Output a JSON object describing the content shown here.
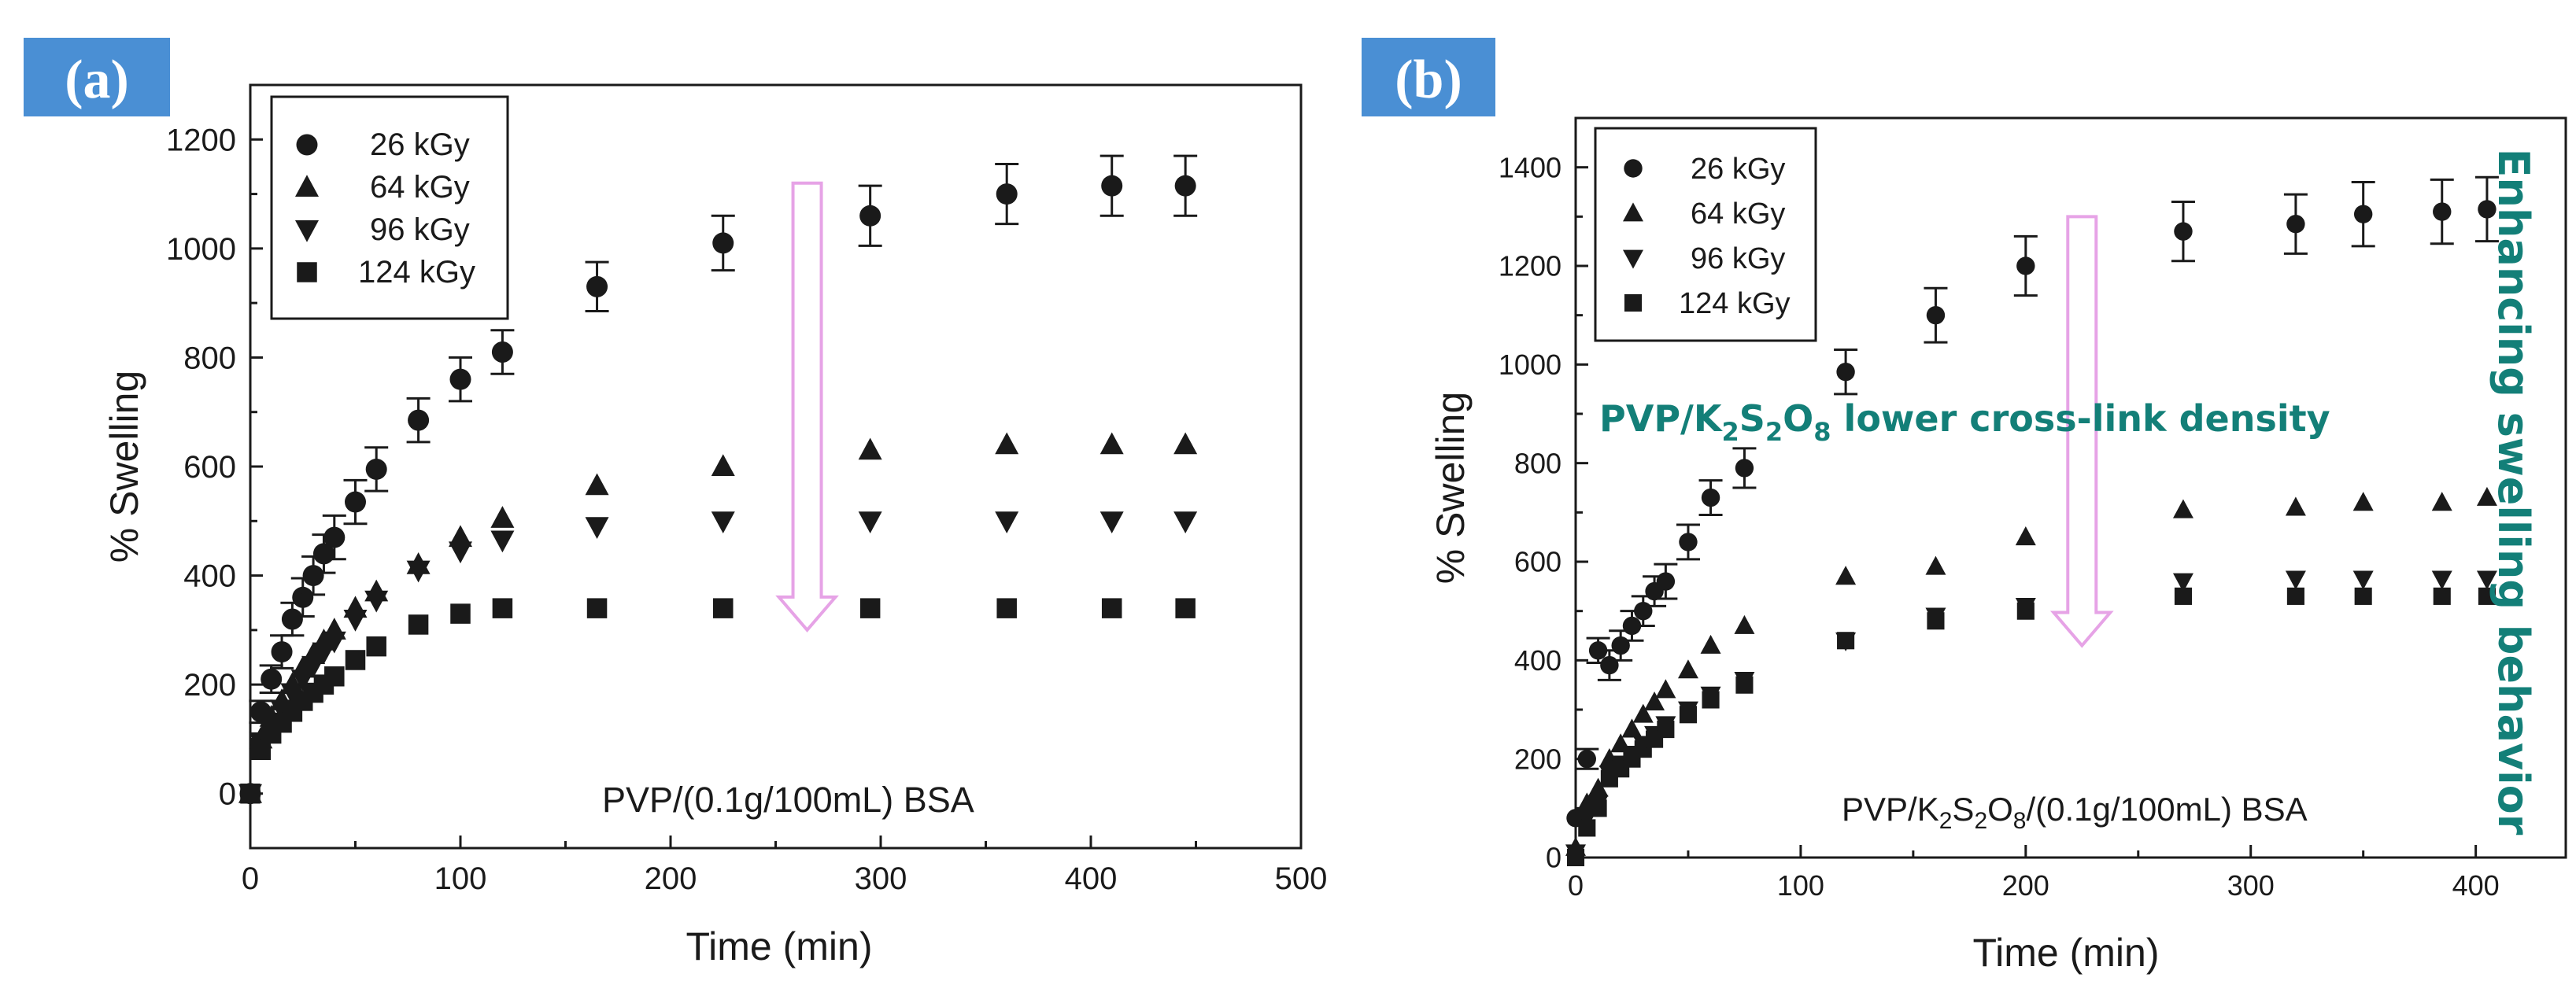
{
  "colors": {
    "marker": "#1a1a1a",
    "badge_bg": "#4a8fd4",
    "badge_text": "#ffffff",
    "arrow": "#e6a3e6",
    "annotation": "#137f78"
  },
  "chart_data": [
    {
      "type": "scatter",
      "panel_label": "(a)",
      "xlabel": "Time (min)",
      "ylabel": "% Swelling",
      "xlim": [
        0,
        500
      ],
      "ylim": [
        -100,
        1300
      ],
      "xticks": [
        "0",
        "100",
        "200",
        "300",
        "400",
        "500"
      ],
      "yticks": [
        "0",
        "200",
        "400",
        "600",
        "800",
        "1000",
        "1200"
      ],
      "legend_position": "top-left",
      "legend": [
        "26 kGy",
        "64 kGy",
        "96 kGy",
        "124 kGy"
      ],
      "annotation_text": "PVP/(0.1g/100mL) BSA",
      "arrow": {
        "x": 265,
        "y_from": 1120,
        "y_to": 300
      },
      "series": [
        {
          "name": "26 kGy",
          "marker": "circle",
          "x": [
            0,
            5,
            10,
            15,
            20,
            25,
            30,
            35,
            40,
            50,
            60,
            80,
            100,
            120,
            165,
            225,
            295,
            360,
            410,
            445
          ],
          "y": [
            0,
            150,
            210,
            260,
            320,
            360,
            400,
            440,
            470,
            535,
            595,
            685,
            760,
            810,
            930,
            1010,
            1060,
            1100,
            1115,
            1115
          ],
          "err": [
            0,
            20,
            25,
            30,
            30,
            35,
            35,
            35,
            40,
            40,
            40,
            40,
            40,
            40,
            45,
            50,
            55,
            55,
            55,
            55
          ]
        },
        {
          "name": "64 kGy",
          "marker": "triangle-up",
          "x": [
            0,
            5,
            10,
            15,
            20,
            25,
            30,
            35,
            40,
            50,
            60,
            80,
            100,
            120,
            165,
            225,
            295,
            360,
            410,
            445
          ],
          "y": [
            0,
            100,
            140,
            170,
            200,
            230,
            255,
            280,
            300,
            340,
            370,
            420,
            470,
            505,
            565,
            600,
            630,
            640,
            640,
            640
          ]
        },
        {
          "name": "96 kGy",
          "marker": "triangle-down",
          "x": [
            0,
            5,
            10,
            15,
            20,
            25,
            30,
            35,
            40,
            50,
            60,
            80,
            100,
            120,
            165,
            225,
            295,
            360,
            410,
            445
          ],
          "y": [
            0,
            95,
            125,
            155,
            185,
            210,
            235,
            260,
            280,
            320,
            355,
            410,
            445,
            465,
            490,
            500,
            500,
            500,
            500,
            500
          ]
        },
        {
          "name": "124 kGy",
          "marker": "square",
          "x": [
            0,
            5,
            10,
            15,
            20,
            25,
            30,
            35,
            40,
            50,
            60,
            80,
            100,
            120,
            165,
            225,
            295,
            360,
            410,
            445
          ],
          "y": [
            0,
            80,
            110,
            130,
            150,
            170,
            185,
            200,
            215,
            245,
            270,
            310,
            330,
            340,
            340,
            340,
            340,
            340,
            340,
            340
          ]
        }
      ]
    },
    {
      "type": "scatter",
      "panel_label": "(b)",
      "xlabel": "Time (min)",
      "ylabel": "% Swelling",
      "xlim": [
        0,
        440
      ],
      "ylim": [
        0,
        1500
      ],
      "xticks": [
        "0",
        "100",
        "200",
        "300",
        "400"
      ],
      "yticks": [
        "0",
        "200",
        "400",
        "600",
        "800",
        "1000",
        "1200",
        "1400"
      ],
      "legend_position": "top-left",
      "legend": [
        "26 kGy",
        "64 kGy",
        "96 kGy",
        "124 kGy"
      ],
      "annotation_text": [
        "PVP/K",
        "2",
        "S",
        "2",
        "O",
        "8",
        "/(0.1g/100mL) BSA"
      ],
      "annotation_teal": [
        "PVP/K",
        "2",
        "S",
        "2",
        "O",
        "8",
        " lower cross-link density"
      ],
      "side_label": "Enhancing swelling behavior",
      "arrow": {
        "x": 225,
        "y_from": 1300,
        "y_to": 430
      },
      "series": [
        {
          "name": "26 kGy",
          "marker": "circle",
          "x": [
            0,
            5,
            10,
            15,
            20,
            25,
            30,
            35,
            40,
            50,
            60,
            75,
            120,
            160,
            200,
            270,
            320,
            350,
            385,
            405
          ],
          "y": [
            80,
            200,
            420,
            390,
            430,
            470,
            500,
            540,
            560,
            640,
            730,
            790,
            985,
            1100,
            1200,
            1270,
            1285,
            1305,
            1310,
            1315
          ],
          "err": [
            0,
            20,
            25,
            30,
            30,
            30,
            30,
            30,
            35,
            35,
            35,
            40,
            45,
            55,
            60,
            60,
            60,
            65,
            65,
            65
          ]
        },
        {
          "name": "64 kGy",
          "marker": "triangle-up",
          "x": [
            0,
            5,
            10,
            15,
            20,
            25,
            30,
            35,
            40,
            50,
            60,
            75,
            120,
            160,
            200,
            270,
            320,
            350,
            385,
            405
          ],
          "y": [
            20,
            110,
            140,
            200,
            230,
            260,
            290,
            315,
            340,
            380,
            430,
            470,
            570,
            590,
            650,
            705,
            710,
            720,
            720,
            730
          ]
        },
        {
          "name": "96 kGy",
          "marker": "triangle-down",
          "x": [
            0,
            5,
            10,
            15,
            20,
            25,
            30,
            35,
            40,
            50,
            60,
            75,
            120,
            160,
            200,
            270,
            320,
            350,
            385,
            405
          ],
          "y": [
            10,
            80,
            110,
            170,
            190,
            210,
            230,
            250,
            270,
            300,
            330,
            360,
            440,
            490,
            510,
            560,
            565,
            565,
            565,
            565
          ]
        },
        {
          "name": "124 kGy",
          "marker": "square",
          "x": [
            0,
            5,
            10,
            15,
            20,
            25,
            30,
            35,
            40,
            50,
            60,
            75,
            120,
            160,
            200,
            270,
            320,
            350,
            385,
            405
          ],
          "y": [
            0,
            60,
            100,
            160,
            180,
            200,
            220,
            240,
            260,
            290,
            320,
            350,
            440,
            480,
            500,
            530,
            530,
            530,
            530,
            530
          ]
        }
      ]
    }
  ]
}
